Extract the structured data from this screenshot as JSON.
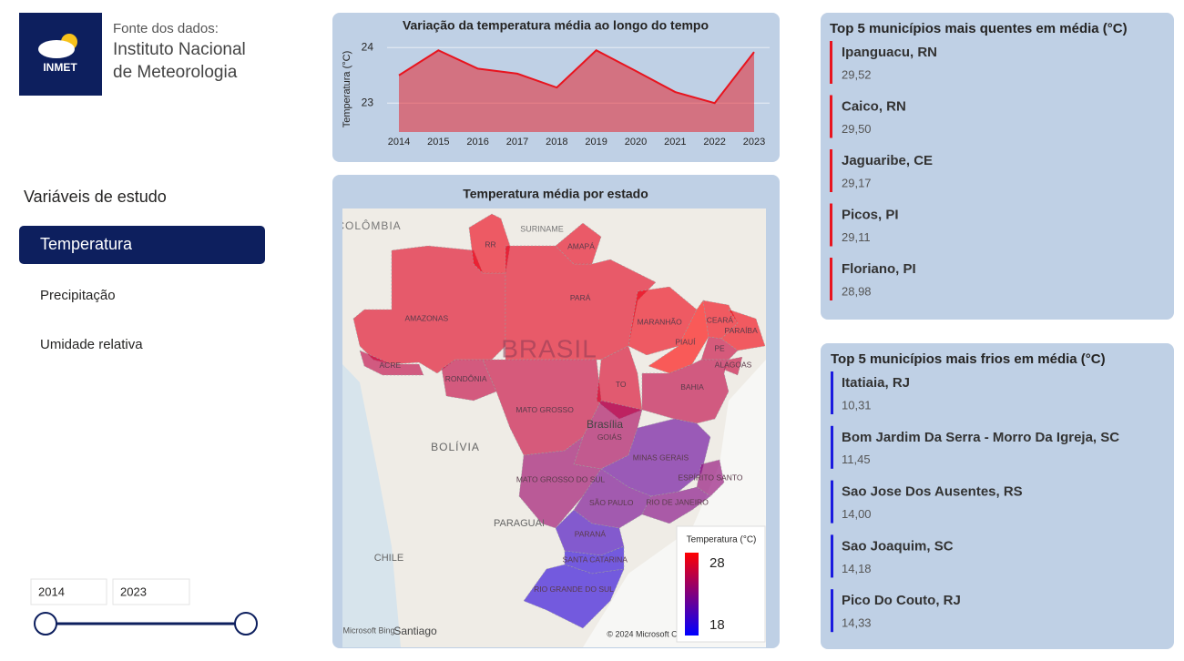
{
  "header": {
    "logo_text": "INMET",
    "source_label": "Fonte dos dados:",
    "source_line1": "Instituto Nacional",
    "source_line2": "de Meteorologia"
  },
  "nav": {
    "title": "Variáveis de estudo",
    "items": [
      "Temperatura",
      "Precipitação",
      "Umidade relativa"
    ],
    "active": 0
  },
  "year_range": {
    "start": 2014,
    "end": 2023
  },
  "chart_data": {
    "type": "line",
    "title": "Variação da temperatura média ao longo do tempo",
    "y_label": "Temperatura (°C)",
    "categories": [
      "2014",
      "2015",
      "2016",
      "2017",
      "2018",
      "2019",
      "2020",
      "2021",
      "2022",
      "2023"
    ],
    "values": [
      23.5,
      23.95,
      23.62,
      23.53,
      23.28,
      23.95,
      23.58,
      23.2,
      23.0,
      23.92
    ],
    "color": "#e8141e",
    "area": true,
    "ylim": [
      22.48,
      24.2
    ],
    "yticks": [
      23,
      24
    ],
    "grid": true
  },
  "map": {
    "title": "Temperatura média por estado",
    "scale": {
      "title": "Temperatura (°C)",
      "min": 18,
      "max": 28,
      "colors": [
        "#0000ff",
        "#ff0000"
      ]
    },
    "states": [
      {
        "label": "AMAZONAS",
        "value": 26.8
      },
      {
        "label": "RR",
        "value": 27.2
      },
      {
        "label": "PARÁ",
        "value": 26.9
      },
      {
        "label": "AMAPÁ",
        "value": 27.0
      },
      {
        "label": "ACRE",
        "value": 25.5
      },
      {
        "label": "RONDÔNIA",
        "value": 25.6
      },
      {
        "label": "MATO GROSSO",
        "value": 25.8
      },
      {
        "label": "TO",
        "value": 26.5
      },
      {
        "label": "MARANHÃO",
        "value": 27.3
      },
      {
        "label": "PIAUÍ",
        "value": 28.0
      },
      {
        "label": "CEARÁ",
        "value": 27.4
      },
      {
        "label": "PARAÍBA",
        "value": 27.5
      },
      {
        "label": "PE",
        "value": 25.8
      },
      {
        "label": "ALAGOAS",
        "value": 25.8
      },
      {
        "label": "BAHIA",
        "value": 25.5
      },
      {
        "label": "GOIÁS",
        "value": 24.5
      },
      {
        "label": "MINAS GERAIS",
        "value": 22.0
      },
      {
        "label": "ESPÍRITO SANTO",
        "value": 23.5
      },
      {
        "label": "MATO GROSSO DO SUL",
        "value": 24.0
      },
      {
        "label": "SÃO PAULO",
        "value": 22.5
      },
      {
        "label": "RIO DE JANEIRO",
        "value": 23.0
      },
      {
        "label": "PARANÁ",
        "value": 20.5
      },
      {
        "label": "SANTA CATARINA",
        "value": 19.5
      },
      {
        "label": "RIO GRANDE DO SUL",
        "value": 19.5
      }
    ],
    "places": [
      "COLÔMBIA",
      "SURINAME",
      "BRASIL",
      "BOLÍVIA",
      "PARAGUAI",
      "CHILE",
      "Brasília",
      "Santiago",
      "Microsoft Bing",
      "© 2024 Microsoft C"
    ]
  },
  "hot_list": {
    "title": "Top 5 municípios mais quentes em média (°C)",
    "items": [
      {
        "name": "Ipanguacu, RN",
        "value": "29,52"
      },
      {
        "name": "Caico, RN",
        "value": "29,50"
      },
      {
        "name": "Jaguaribe, CE",
        "value": "29,17"
      },
      {
        "name": "Picos, PI",
        "value": "29,11"
      },
      {
        "name": "Floriano, PI",
        "value": "28,98"
      }
    ]
  },
  "cold_list": {
    "title": "Top 5 municípios mais frios em média (°C)",
    "items": [
      {
        "name": "Itatiaia, RJ",
        "value": "10,31"
      },
      {
        "name": "Bom Jardim Da Serra - Morro Da Igreja, SC",
        "value": "11,45"
      },
      {
        "name": "Sao Jose Dos Ausentes, RS",
        "value": "14,00"
      },
      {
        "name": "Sao Joaquim, SC",
        "value": "14,18"
      },
      {
        "name": "Pico Do Couto, RJ",
        "value": "14,33"
      }
    ]
  }
}
